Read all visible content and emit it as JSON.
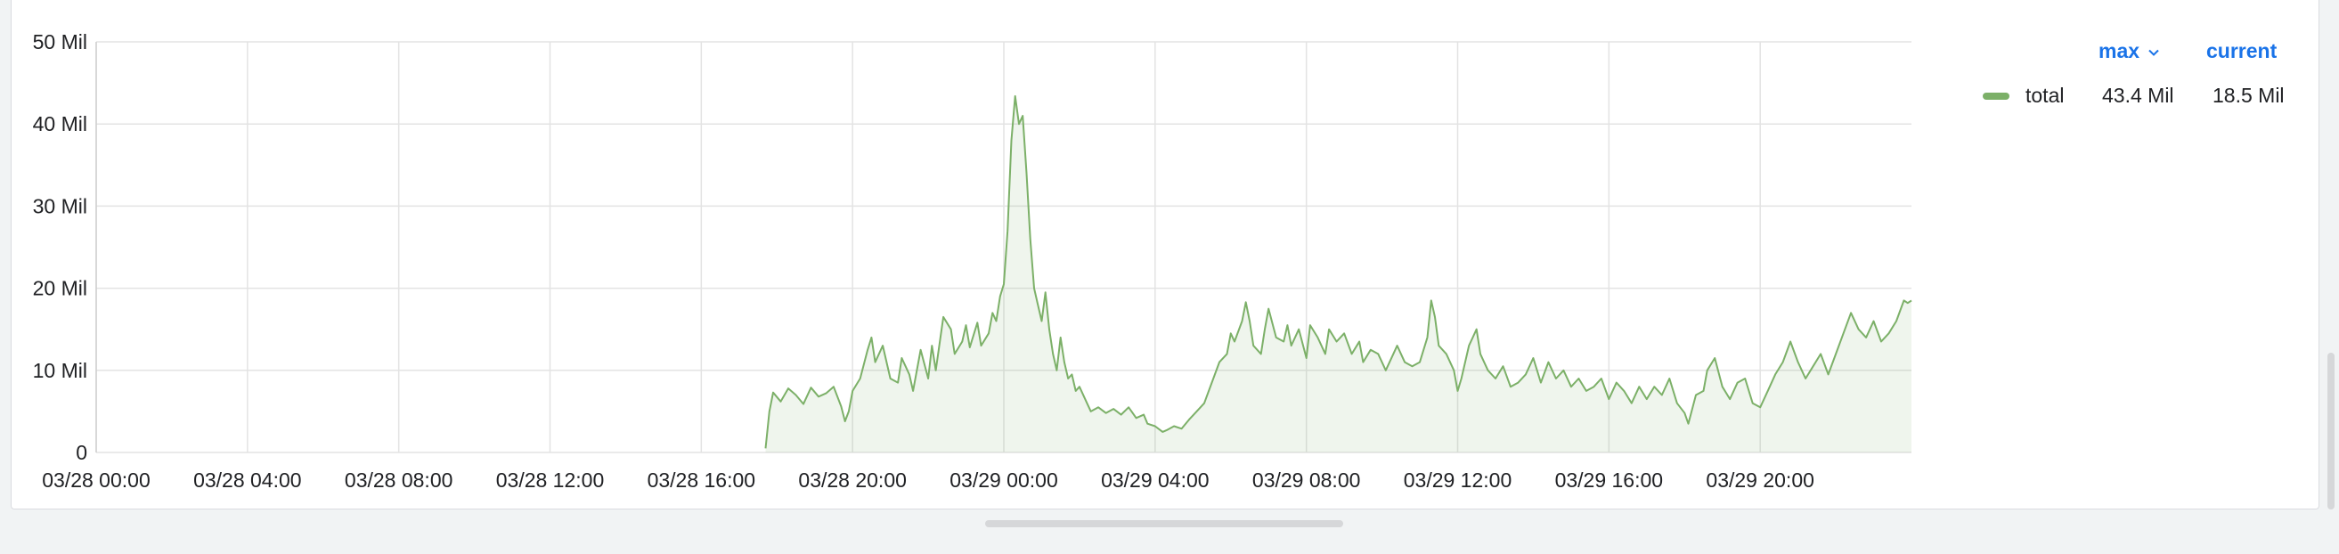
{
  "chart_data": {
    "type": "area",
    "colors": {
      "series": "#7cb068",
      "fill": "#7cb068",
      "grid": "#e3e3e3"
    },
    "yticks": [
      {
        "value": 0,
        "label": "0"
      },
      {
        "value": 10,
        "label": "10 Mil"
      },
      {
        "value": 20,
        "label": "20 Mil"
      },
      {
        "value": 30,
        "label": "30 Mil"
      },
      {
        "value": 40,
        "label": "40 Mil"
      },
      {
        "value": 50,
        "label": "50 Mil"
      }
    ],
    "xticks": [
      {
        "value": 0,
        "label": "03/28 00:00"
      },
      {
        "value": 4,
        "label": "03/28 04:00"
      },
      {
        "value": 8,
        "label": "03/28 08:00"
      },
      {
        "value": 12,
        "label": "03/28 12:00"
      },
      {
        "value": 16,
        "label": "03/28 16:00"
      },
      {
        "value": 20,
        "label": "03/28 20:00"
      },
      {
        "value": 24,
        "label": "03/29 00:00"
      },
      {
        "value": 28,
        "label": "03/29 04:00"
      },
      {
        "value": 32,
        "label": "03/29 08:00"
      },
      {
        "value": 36,
        "label": "03/29 12:00"
      },
      {
        "value": 40,
        "label": "03/29 16:00"
      },
      {
        "value": 44,
        "label": "03/29 20:00"
      }
    ],
    "xlim": [
      0,
      48
    ],
    "ylim": [
      0,
      50
    ],
    "x_unit": "hours from 03/28 00:00",
    "y_unit": "Mil",
    "series": [
      {
        "name": "total",
        "points": [
          [
            17.7,
            0.5
          ],
          [
            17.8,
            5.0
          ],
          [
            17.9,
            7.3
          ],
          [
            18.1,
            6.2
          ],
          [
            18.3,
            7.8
          ],
          [
            18.5,
            7.0
          ],
          [
            18.7,
            5.9
          ],
          [
            18.9,
            7.9
          ],
          [
            19.1,
            6.8
          ],
          [
            19.3,
            7.2
          ],
          [
            19.5,
            8.0
          ],
          [
            19.7,
            5.6
          ],
          [
            19.8,
            3.8
          ],
          [
            19.9,
            5.0
          ],
          [
            20.0,
            7.5
          ],
          [
            20.2,
            9.0
          ],
          [
            20.4,
            12.5
          ],
          [
            20.5,
            14.0
          ],
          [
            20.6,
            11.0
          ],
          [
            20.8,
            13.0
          ],
          [
            21.0,
            9.0
          ],
          [
            21.2,
            8.5
          ],
          [
            21.3,
            11.5
          ],
          [
            21.5,
            9.5
          ],
          [
            21.6,
            7.5
          ],
          [
            21.8,
            12.5
          ],
          [
            22.0,
            9.0
          ],
          [
            22.1,
            13.0
          ],
          [
            22.2,
            10.0
          ],
          [
            22.4,
            16.5
          ],
          [
            22.6,
            15.0
          ],
          [
            22.7,
            12.0
          ],
          [
            22.9,
            13.5
          ],
          [
            23.0,
            15.5
          ],
          [
            23.1,
            12.8
          ],
          [
            23.3,
            15.8
          ],
          [
            23.4,
            13.0
          ],
          [
            23.6,
            14.5
          ],
          [
            23.7,
            17.0
          ],
          [
            23.8,
            16.0
          ],
          [
            23.9,
            19.0
          ],
          [
            24.0,
            20.5
          ],
          [
            24.1,
            27.0
          ],
          [
            24.2,
            38.0
          ],
          [
            24.3,
            43.4
          ],
          [
            24.4,
            40.0
          ],
          [
            24.5,
            41.0
          ],
          [
            24.6,
            34.0
          ],
          [
            24.7,
            26.0
          ],
          [
            24.8,
            20.0
          ],
          [
            24.9,
            18.0
          ],
          [
            25.0,
            16.0
          ],
          [
            25.1,
            19.5
          ],
          [
            25.2,
            15.0
          ],
          [
            25.3,
            12.0
          ],
          [
            25.4,
            10.0
          ],
          [
            25.5,
            14.0
          ],
          [
            25.6,
            11.0
          ],
          [
            25.7,
            9.0
          ],
          [
            25.8,
            9.5
          ],
          [
            25.9,
            7.5
          ],
          [
            26.0,
            8.0
          ],
          [
            26.2,
            6.0
          ],
          [
            26.3,
            5.0
          ],
          [
            26.5,
            5.5
          ],
          [
            26.7,
            4.8
          ],
          [
            26.9,
            5.3
          ],
          [
            27.1,
            4.6
          ],
          [
            27.3,
            5.5
          ],
          [
            27.5,
            4.2
          ],
          [
            27.7,
            4.6
          ],
          [
            27.8,
            3.5
          ],
          [
            28.0,
            3.2
          ],
          [
            28.2,
            2.5
          ],
          [
            28.3,
            2.7
          ],
          [
            28.5,
            3.2
          ],
          [
            28.7,
            2.9
          ],
          [
            28.9,
            4.0
          ],
          [
            29.1,
            5.0
          ],
          [
            29.3,
            6.0
          ],
          [
            29.5,
            8.5
          ],
          [
            29.7,
            11.0
          ],
          [
            29.9,
            12.0
          ],
          [
            30.0,
            14.5
          ],
          [
            30.1,
            13.5
          ],
          [
            30.3,
            16.0
          ],
          [
            30.4,
            18.3
          ],
          [
            30.5,
            16.0
          ],
          [
            30.6,
            13.0
          ],
          [
            30.8,
            12.0
          ],
          [
            30.9,
            15.0
          ],
          [
            31.0,
            17.5
          ],
          [
            31.2,
            14.0
          ],
          [
            31.4,
            13.5
          ],
          [
            31.5,
            15.5
          ],
          [
            31.6,
            13.0
          ],
          [
            31.8,
            15.0
          ],
          [
            32.0,
            11.5
          ],
          [
            32.1,
            15.5
          ],
          [
            32.3,
            14.0
          ],
          [
            32.5,
            12.0
          ],
          [
            32.6,
            15.0
          ],
          [
            32.8,
            13.5
          ],
          [
            33.0,
            14.5
          ],
          [
            33.2,
            12.0
          ],
          [
            33.4,
            13.5
          ],
          [
            33.5,
            11.0
          ],
          [
            33.7,
            12.5
          ],
          [
            33.9,
            12.0
          ],
          [
            34.1,
            10.0
          ],
          [
            34.3,
            12.0
          ],
          [
            34.4,
            13.0
          ],
          [
            34.6,
            11.0
          ],
          [
            34.8,
            10.5
          ],
          [
            35.0,
            11.0
          ],
          [
            35.2,
            14.0
          ],
          [
            35.3,
            18.5
          ],
          [
            35.4,
            16.5
          ],
          [
            35.5,
            13.0
          ],
          [
            35.7,
            12.0
          ],
          [
            35.9,
            10.0
          ],
          [
            36.0,
            7.5
          ],
          [
            36.1,
            9.0
          ],
          [
            36.3,
            13.0
          ],
          [
            36.5,
            15.0
          ],
          [
            36.6,
            12.0
          ],
          [
            36.8,
            10.0
          ],
          [
            37.0,
            9.0
          ],
          [
            37.2,
            10.5
          ],
          [
            37.4,
            8.0
          ],
          [
            37.6,
            8.5
          ],
          [
            37.8,
            9.5
          ],
          [
            38.0,
            11.5
          ],
          [
            38.2,
            8.5
          ],
          [
            38.4,
            11.0
          ],
          [
            38.6,
            9.0
          ],
          [
            38.8,
            10.0
          ],
          [
            39.0,
            8.0
          ],
          [
            39.2,
            9.0
          ],
          [
            39.4,
            7.5
          ],
          [
            39.6,
            8.0
          ],
          [
            39.8,
            9.0
          ],
          [
            40.0,
            6.5
          ],
          [
            40.2,
            8.5
          ],
          [
            40.4,
            7.5
          ],
          [
            40.6,
            6.0
          ],
          [
            40.8,
            8.0
          ],
          [
            41.0,
            6.5
          ],
          [
            41.2,
            8.0
          ],
          [
            41.4,
            7.0
          ],
          [
            41.6,
            9.0
          ],
          [
            41.8,
            6.0
          ],
          [
            42.0,
            4.8
          ],
          [
            42.1,
            3.5
          ],
          [
            42.3,
            7.0
          ],
          [
            42.5,
            7.5
          ],
          [
            42.6,
            10.0
          ],
          [
            42.8,
            11.5
          ],
          [
            43.0,
            8.0
          ],
          [
            43.2,
            6.5
          ],
          [
            43.4,
            8.5
          ],
          [
            43.6,
            9.0
          ],
          [
            43.8,
            6.0
          ],
          [
            44.0,
            5.5
          ],
          [
            44.2,
            7.5
          ],
          [
            44.4,
            9.5
          ],
          [
            44.6,
            11.0
          ],
          [
            44.8,
            13.5
          ],
          [
            45.0,
            11.0
          ],
          [
            45.2,
            9.0
          ],
          [
            45.4,
            10.5
          ],
          [
            45.6,
            12.0
          ],
          [
            45.8,
            9.5
          ],
          [
            46.0,
            12.0
          ],
          [
            46.2,
            14.5
          ],
          [
            46.4,
            17.0
          ],
          [
            46.6,
            15.0
          ],
          [
            46.8,
            14.0
          ],
          [
            47.0,
            16.0
          ],
          [
            47.2,
            13.5
          ],
          [
            47.4,
            14.5
          ],
          [
            47.6,
            16.0
          ],
          [
            47.8,
            18.5
          ],
          [
            47.9,
            18.2
          ],
          [
            48.0,
            18.5
          ]
        ]
      }
    ]
  },
  "legend": {
    "headers": {
      "max": "max",
      "current": "current"
    },
    "items": [
      {
        "name": "total",
        "max": "43.4 Mil",
        "current": "18.5 Mil",
        "color": "#7cb068"
      }
    ]
  }
}
